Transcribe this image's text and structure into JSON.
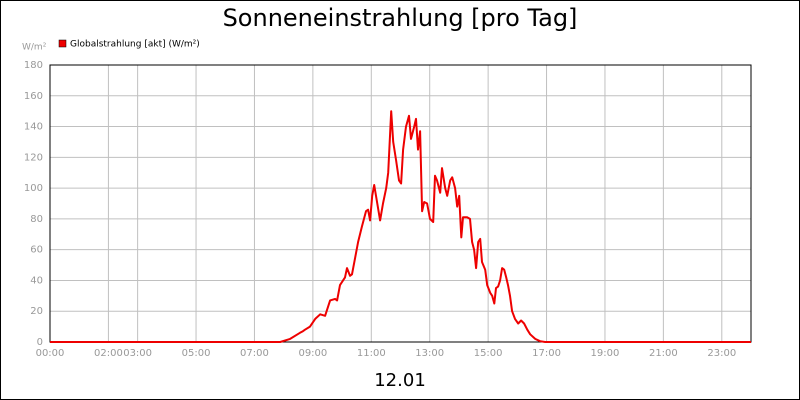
{
  "chart_data": {
    "type": "line",
    "title": "Sonneneinstrahlung [pro Tag]",
    "ylabel": "W/m²",
    "xlabel": "12.01",
    "series": [
      {
        "name": "Globalstrahlung [akt] (W/m²)",
        "color": "#ee0000",
        "x": [
          0,
          7.88,
          8.22,
          8.56,
          8.66,
          8.73,
          8.9,
          9.08,
          9.25,
          9.42,
          9.59,
          9.76,
          9.83,
          9.93,
          10.1,
          10.17,
          10.27,
          10.34,
          10.45,
          10.55,
          10.68,
          10.82,
          10.89,
          10.96,
          11.03,
          11.1,
          11.3,
          11.4,
          11.51,
          11.58,
          11.68,
          11.75,
          11.85,
          11.95,
          12.02,
          12.09,
          12.19,
          12.29,
          12.36,
          12.47,
          12.53,
          12.6,
          12.67,
          12.74,
          12.81,
          12.91,
          13.01,
          13.12,
          13.18,
          13.25,
          13.36,
          13.42,
          13.53,
          13.6,
          13.7,
          13.77,
          13.87,
          13.94,
          14.01,
          14.08,
          14.14,
          14.28,
          14.38,
          14.45,
          14.52,
          14.59,
          14.66,
          14.73,
          14.79,
          14.9,
          14.97,
          15.07,
          15.14,
          15.21,
          15.27,
          15.34,
          15.41,
          15.48,
          15.55,
          15.62,
          15.68,
          15.75,
          15.82,
          15.92,
          16.03,
          16.13,
          16.23,
          16.34,
          16.44,
          16.61,
          16.78,
          16.95,
          24
        ],
        "values": [
          0,
          0,
          2,
          6,
          7,
          8,
          10,
          15,
          18,
          17,
          27,
          28,
          27,
          37,
          42,
          48,
          43,
          44,
          55,
          65,
          75,
          85,
          86,
          79,
          95,
          102,
          79,
          90,
          100,
          110,
          150,
          130,
          118,
          105,
          103,
          125,
          140,
          147,
          132,
          140,
          145,
          125,
          137,
          85,
          91,
          90,
          80,
          78,
          108,
          105,
          97,
          113,
          100,
          95,
          105,
          107,
          100,
          88,
          95,
          68,
          81,
          81,
          80,
          65,
          60,
          48,
          65,
          67,
          52,
          47,
          37,
          32,
          30,
          25,
          35,
          36,
          40,
          48,
          47,
          42,
          37,
          30,
          20,
          15,
          12,
          14,
          12,
          8,
          5,
          2,
          0.5,
          0,
          0
        ]
      }
    ],
    "xlim": [
      0,
      24
    ],
    "xticks": [
      {
        "value": 0,
        "label": "00:00"
      },
      {
        "value": 2,
        "label": "02:00"
      },
      {
        "value": 3,
        "label": "03:00"
      },
      {
        "value": 5,
        "label": "05:00"
      },
      {
        "value": 7,
        "label": "07:00"
      },
      {
        "value": 9,
        "label": "09:00"
      },
      {
        "value": 11,
        "label": "11:00"
      },
      {
        "value": 13,
        "label": "13:00"
      },
      {
        "value": 15,
        "label": "15:00"
      },
      {
        "value": 17,
        "label": "17:00"
      },
      {
        "value": 19,
        "label": "19:00"
      },
      {
        "value": 21,
        "label": "21:00"
      },
      {
        "value": 23,
        "label": "23:00"
      }
    ],
    "ylim": [
      0,
      180
    ],
    "yticks": [
      0,
      20,
      40,
      60,
      80,
      100,
      120,
      140,
      160,
      180
    ],
    "grid": true
  }
}
